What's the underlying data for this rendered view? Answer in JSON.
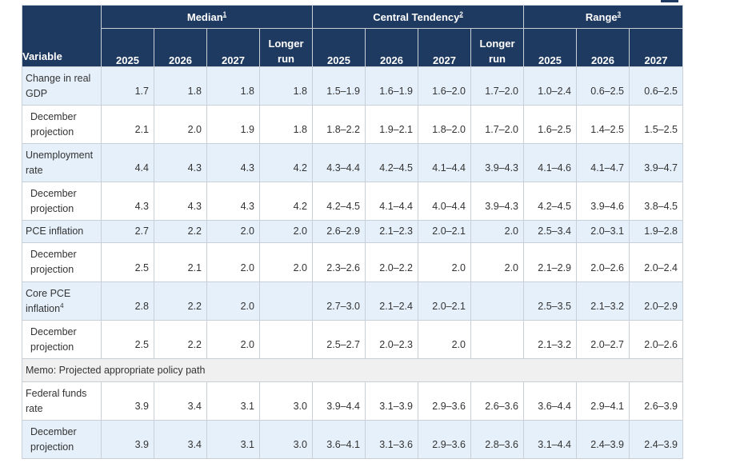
{
  "table": {
    "variable_header": "Variable",
    "groups": [
      {
        "label": "Median",
        "note": "1"
      },
      {
        "label": "Central Tendency",
        "note": "2"
      },
      {
        "label": "Range",
        "note": "3"
      }
    ],
    "columns": [
      "2025",
      "2026",
      "2027",
      "Longer run",
      "2025",
      "2026",
      "2027",
      "Longer run",
      "2025",
      "2026",
      "2027"
    ],
    "rows": [
      {
        "label": "Change in real GDP",
        "sub": false,
        "cells": [
          "1.7",
          "1.8",
          "1.8",
          "1.8",
          "1.5–1.9",
          "1.6–1.9",
          "1.6–2.0",
          "1.7–2.0",
          "1.0–2.4",
          "0.6–2.5",
          "0.6–2.5"
        ]
      },
      {
        "label": "December projection",
        "sub": true,
        "cells": [
          "2.1",
          "2.0",
          "1.9",
          "1.8",
          "1.8–2.2",
          "1.9–2.1",
          "1.8–2.0",
          "1.7–2.0",
          "1.6–2.5",
          "1.4–2.5",
          "1.5–2.5"
        ]
      },
      {
        "label": "Unemployment rate",
        "sub": false,
        "cells": [
          "4.4",
          "4.3",
          "4.3",
          "4.2",
          "4.3–4.4",
          "4.2–4.5",
          "4.1–4.4",
          "3.9–4.3",
          "4.1–4.6",
          "4.1–4.7",
          "3.9–4.7"
        ]
      },
      {
        "label": "December projection",
        "sub": true,
        "cells": [
          "4.3",
          "4.3",
          "4.3",
          "4.2",
          "4.2–4.5",
          "4.1–4.4",
          "4.0–4.4",
          "3.9–4.3",
          "4.2–4.5",
          "3.9–4.6",
          "3.8–4.5"
        ]
      },
      {
        "label": "PCE inflation",
        "sub": false,
        "cells": [
          "2.7",
          "2.2",
          "2.0",
          "2.0",
          "2.6–2.9",
          "2.1–2.3",
          "2.0–2.1",
          "2.0",
          "2.5–3.4",
          "2.0–3.1",
          "1.9–2.8"
        ]
      },
      {
        "label": "December projection",
        "sub": true,
        "cells": [
          "2.5",
          "2.1",
          "2.0",
          "2.0",
          "2.3–2.6",
          "2.0–2.2",
          "2.0",
          "2.0",
          "2.1–2.9",
          "2.0–2.6",
          "2.0–2.4"
        ]
      },
      {
        "label": "Core PCE inflation",
        "note": "4",
        "sub": false,
        "cells": [
          "2.8",
          "2.2",
          "2.0",
          "",
          "2.7–3.0",
          "2.1–2.4",
          "2.0–2.1",
          "",
          "2.5–3.5",
          "2.1–3.2",
          "2.0–2.9"
        ]
      },
      {
        "label": "December projection",
        "sub": true,
        "cells": [
          "2.5",
          "2.2",
          "2.0",
          "",
          "2.5–2.7",
          "2.0–2.3",
          "2.0",
          "",
          "2.1–3.2",
          "2.0–2.7",
          "2.0–2.6"
        ]
      }
    ],
    "memo": "Memo: Projected appropriate policy path",
    "policy_rows": [
      {
        "label": "Federal funds rate",
        "sub": false,
        "cells": [
          "3.9",
          "3.4",
          "3.1",
          "3.0",
          "3.9–4.4",
          "3.1–3.9",
          "2.9–3.6",
          "2.6–3.6",
          "3.6–4.4",
          "2.9–4.1",
          "2.6–3.9"
        ]
      },
      {
        "label": "December projection",
        "sub": true,
        "cells": [
          "3.9",
          "3.4",
          "3.1",
          "3.0",
          "3.6–4.1",
          "3.1–3.6",
          "2.9–3.6",
          "2.8–3.6",
          "3.1–4.4",
          "2.4–3.9",
          "2.4–3.9"
        ]
      }
    ]
  }
}
